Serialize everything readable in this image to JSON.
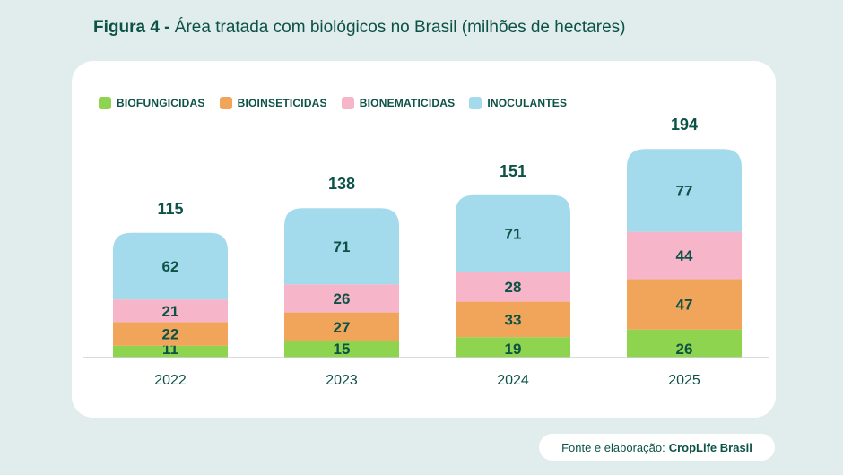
{
  "title": {
    "prefix": "Figura 4 -",
    "text": "Área tratada com biológicos no Brasil (milhões de hectares)"
  },
  "source": {
    "label": "Fonte e elaboração:",
    "brand": "CropLife Brasil"
  },
  "chart_data": {
    "type": "bar",
    "stacked": true,
    "categories": [
      "2022",
      "2023",
      "2024",
      "2025"
    ],
    "series": [
      {
        "name": "BIOFUNGICIDAS",
        "color": "#8fd44e",
        "values": [
          11,
          15,
          19,
          26
        ]
      },
      {
        "name": "BIOINSETICIDAS",
        "color": "#f0a55a",
        "values": [
          22,
          27,
          33,
          47
        ]
      },
      {
        "name": "BIONEMATICIDAS",
        "color": "#f7b5c9",
        "values": [
          21,
          26,
          28,
          44
        ]
      },
      {
        "name": "INOCULANTES",
        "color": "#a3dbec",
        "values": [
          62,
          71,
          71,
          77
        ]
      }
    ],
    "totals": [
      115,
      138,
      151,
      194
    ],
    "legend": "top-left",
    "grid": false
  }
}
